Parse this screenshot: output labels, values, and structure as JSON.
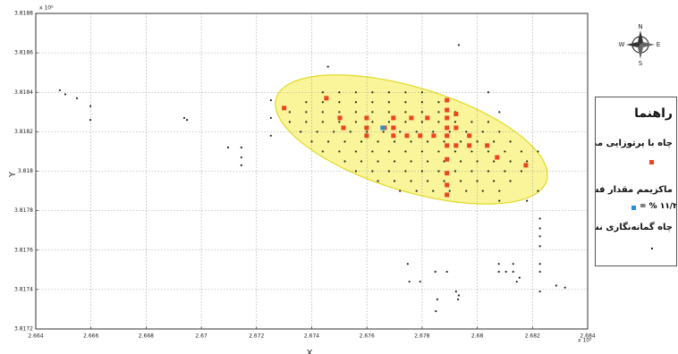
{
  "chart_data": {
    "type": "scatter",
    "x_label": "X",
    "y_label": "Y",
    "x_exponent": "x 10⁵",
    "y_exponent": "x 10⁶",
    "xlim": [
      2.664,
      2.684
    ],
    "ylim": [
      3.8172,
      3.8188
    ],
    "xticks": [
      2.664,
      2.666,
      2.668,
      2.67,
      2.672,
      2.674,
      2.676,
      2.678,
      2.68,
      2.682,
      2.684
    ],
    "yticks": [
      3.8172,
      3.8174,
      3.8176,
      3.8178,
      3.818,
      3.8182,
      3.8184,
      3.8186,
      3.8188
    ],
    "grid": true,
    "legend_title": "راهنما",
    "series": [
      {
        "name": "چاه گمانه‌نگاری نشده",
        "color": "#222222",
        "marker": "dot",
        "x": [
          2.6744,
          2.675,
          2.6756,
          2.6762,
          2.6768,
          2.6774,
          2.678,
          2.6738,
          2.6744,
          2.675,
          2.6756,
          2.6762,
          2.6768,
          2.6774,
          2.678,
          2.6786,
          2.6732,
          2.6738,
          2.6744,
          2.675,
          2.6756,
          2.6762,
          2.6768,
          2.6774,
          2.678,
          2.6786,
          2.6792,
          2.6732,
          2.6738,
          2.6744,
          2.675,
          2.6756,
          2.6762,
          2.6768,
          2.6774,
          2.678,
          2.6786,
          2.6792,
          2.6798,
          2.6804,
          2.6736,
          2.6742,
          2.6748,
          2.6754,
          2.676,
          2.6766,
          2.6772,
          2.6778,
          2.6784,
          2.679,
          2.6796,
          2.6802,
          2.6808,
          2.674,
          2.6746,
          2.6752,
          2.6758,
          2.6764,
          2.677,
          2.6776,
          2.6782,
          2.6788,
          2.6794,
          2.68,
          2.6806,
          2.6812,
          2.6744,
          2.675,
          2.6756,
          2.6762,
          2.6768,
          2.6774,
          2.678,
          2.6786,
          2.6792,
          2.6798,
          2.6804,
          2.681,
          2.6816,
          2.6752,
          2.6758,
          2.6764,
          2.677,
          2.6776,
          2.6782,
          2.6788,
          2.6794,
          2.68,
          2.6806,
          2.6812,
          2.6818,
          2.6756,
          2.6762,
          2.6768,
          2.6774,
          2.678,
          2.6786,
          2.6792,
          2.6798,
          2.6804,
          2.681,
          2.6816,
          2.6764,
          2.677,
          2.6776,
          2.6782,
          2.6788,
          2.6794,
          2.68,
          2.6806,
          2.6812,
          2.6772,
          2.6778,
          2.6784,
          2.679,
          2.6796,
          2.6802,
          2.6808,
          2.66487,
          2.66507,
          2.66549,
          2.66598,
          2.66598,
          2.66938,
          2.66948,
          2.67097,
          2.67145,
          2.67145,
          2.67145,
          2.67252,
          2.67252,
          2.67252,
          2.67459,
          2.67933,
          2.6804,
          2.6808,
          2.6822,
          2.6822,
          2.6818,
          2.6808,
          2.67748,
          2.67754,
          2.67793,
          2.67848,
          2.6789,
          2.67855,
          2.67923,
          2.67933,
          2.6793,
          2.6785,
          2.68078,
          2.68078,
          2.68104,
          2.6813,
          2.6813,
          2.68143,
          2.68153,
          2.68227,
          2.68227,
          2.68227,
          2.68227,
          2.68227,
          2.68227,
          2.68227,
          2.68286,
          2.68318
        ],
        "y": [
          3.8184,
          3.8184,
          3.8184,
          3.8184,
          3.8184,
          3.8184,
          3.8184,
          3.81835,
          3.81835,
          3.81835,
          3.81835,
          3.81835,
          3.81835,
          3.81835,
          3.81835,
          3.81835,
          3.8183,
          3.8183,
          3.8183,
          3.8183,
          3.8183,
          3.8183,
          3.8183,
          3.8183,
          3.8183,
          3.8183,
          3.8183,
          3.81825,
          3.81825,
          3.81825,
          3.81825,
          3.81825,
          3.81825,
          3.81825,
          3.81825,
          3.81825,
          3.81825,
          3.81825,
          3.81825,
          3.81825,
          3.8182,
          3.8182,
          3.8182,
          3.8182,
          3.8182,
          3.8182,
          3.8182,
          3.8182,
          3.8182,
          3.8182,
          3.8182,
          3.8182,
          3.8182,
          3.81815,
          3.81815,
          3.81815,
          3.81815,
          3.81815,
          3.81815,
          3.81815,
          3.81815,
          3.81815,
          3.81815,
          3.81815,
          3.81815,
          3.81815,
          3.8181,
          3.8181,
          3.8181,
          3.8181,
          3.8181,
          3.8181,
          3.8181,
          3.8181,
          3.8181,
          3.8181,
          3.8181,
          3.8181,
          3.8181,
          3.81805,
          3.81805,
          3.81805,
          3.81805,
          3.81805,
          3.81805,
          3.81805,
          3.81805,
          3.81805,
          3.81805,
          3.81805,
          3.81805,
          3.818,
          3.818,
          3.818,
          3.818,
          3.818,
          3.818,
          3.818,
          3.818,
          3.818,
          3.818,
          3.818,
          3.81795,
          3.81795,
          3.81795,
          3.81795,
          3.81795,
          3.81795,
          3.81795,
          3.81795,
          3.81795,
          3.8179,
          3.8179,
          3.8179,
          3.8179,
          3.8179,
          3.8179,
          3.8179,
          3.81841,
          3.81839,
          3.81837,
          3.81833,
          3.81826,
          3.81827,
          3.81826,
          3.81812,
          3.81812,
          3.81807,
          3.81803,
          3.81836,
          3.81827,
          3.81818,
          3.81853,
          3.81864,
          3.8184,
          3.8183,
          3.8181,
          3.8179,
          3.81785,
          3.81785,
          3.81753,
          3.81744,
          3.81744,
          3.81749,
          3.81749,
          3.81735,
          3.81739,
          3.81737,
          3.81735,
          3.81729,
          3.81749,
          3.81753,
          3.81749,
          3.81753,
          3.81749,
          3.81744,
          3.81746,
          3.81776,
          3.81771,
          3.81767,
          3.81762,
          3.81753,
          3.81749,
          3.81739,
          3.81742,
          3.81741
        ]
      },
      {
        "name": "چاه با پرتوزایی مطلوب",
        "color": "#ee4422",
        "marker": "square",
        "x": [
          2.673,
          2.67453,
          2.67502,
          2.67515,
          2.67599,
          2.67599,
          2.67599,
          2.67664,
          2.67696,
          2.67696,
          2.67696,
          2.67761,
          2.67745,
          2.67793,
          2.67819,
          2.67842,
          2.6789,
          2.6789,
          2.6789,
          2.6789,
          2.6789,
          2.6789,
          2.6789,
          2.6789,
          2.6789,
          2.6789,
          2.67923,
          2.67923,
          2.67923,
          2.67971,
          2.67971,
          2.68036,
          2.68072,
          2.68176
        ],
        "y": [
          3.81832,
          3.81837,
          3.81827,
          3.81822,
          3.81827,
          3.81822,
          3.81818,
          3.81822,
          3.81827,
          3.81822,
          3.81818,
          3.81827,
          3.81818,
          3.81818,
          3.81827,
          3.81818,
          3.81836,
          3.81831,
          3.81827,
          3.81822,
          3.81818,
          3.81813,
          3.81806,
          3.81799,
          3.81793,
          3.81788,
          3.81829,
          3.81822,
          3.81813,
          3.81818,
          3.81813,
          3.81813,
          3.81807,
          3.81803
        ]
      },
      {
        "name": "ماکزیمم مقدار فسفر",
        "color": "#2a8fd8",
        "marker": "square",
        "x": [
          2.67657
        ],
        "y": [
          3.81822
        ],
        "label": "= % ۱۱/۲"
      }
    ]
  }
}
